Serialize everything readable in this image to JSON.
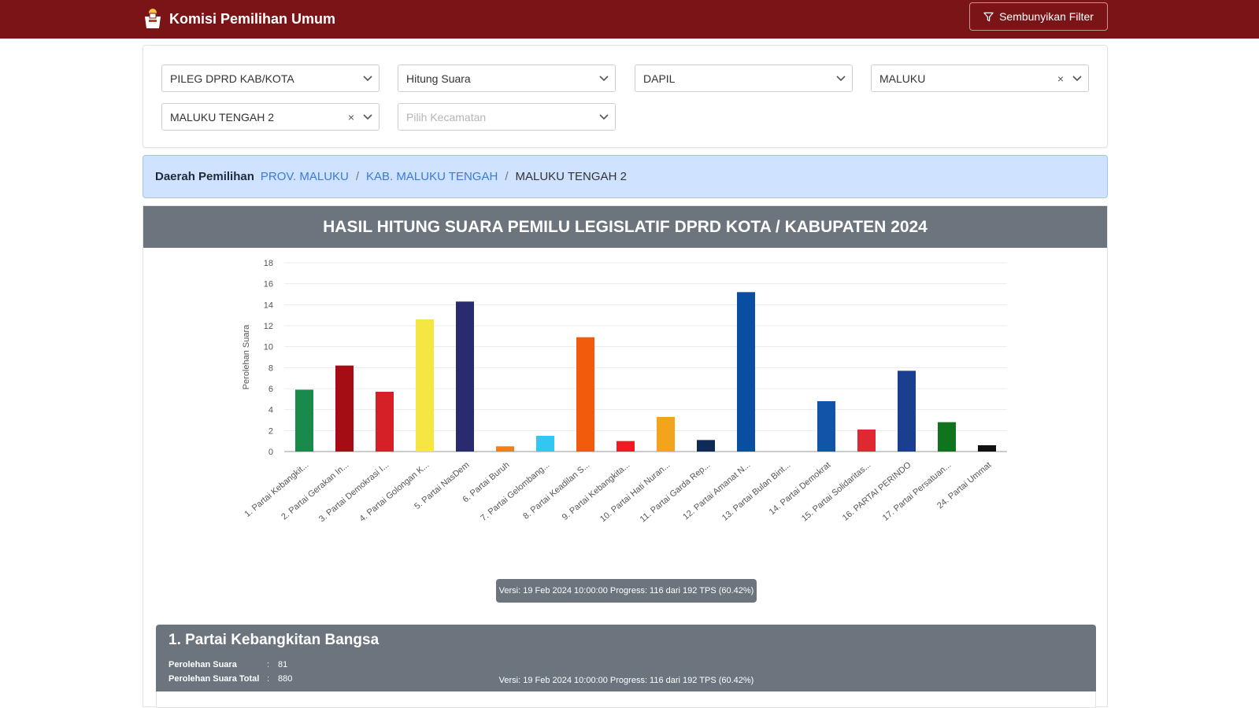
{
  "navbar": {
    "title": "Komisi Pemilihan Umum",
    "filter_button": "Sembunyikan Filter"
  },
  "filters": [
    {
      "value": "PILEG DPRD KAB/KOTA",
      "clearable": false
    },
    {
      "value": "Hitung Suara",
      "clearable": false
    },
    {
      "value": "DAPIL",
      "clearable": false
    },
    {
      "value": "MALUKU",
      "clearable": true
    },
    {
      "value": "MALUKU TENGAH 2",
      "clearable": true
    },
    {
      "value": "",
      "placeholder": "Pilih Kecamatan",
      "clearable": false
    }
  ],
  "breadcrumb": {
    "title": "Daerah Pemilihan",
    "items": [
      "PROV. MALUKU",
      "KAB. MALUKU TENGAH",
      "MALUKU TENGAH 2"
    ]
  },
  "chart_header": "HASIL HITUNG SUARA PEMILU LEGISLATIF DPRD KOTA / KABUPATEN 2024",
  "version_text": "Versi: 19 Feb 2024 10:00:00 Progress: 116 dari 192 TPS (60.42%)",
  "chart_data": {
    "type": "bar",
    "title": "",
    "xlabel": "",
    "ylabel": "Perolehan Suara",
    "ylim": [
      0,
      18
    ],
    "yticks": [
      0,
      2,
      4,
      6,
      8,
      10,
      12,
      14,
      16,
      18
    ],
    "grid": true,
    "categories": [
      "1. Partai Kebangkit...",
      "2. Partai Gerakan In...",
      "3. Partai Demokrasi I...",
      "4. Partai Golongan K...",
      "5. Partai NasDem",
      "6. Partai Buruh",
      "7. Partai Gelombang...",
      "8. Partai Keadilan S...",
      "9. Partai Kebangkita...",
      "10. Partai Hati Nuran...",
      "11. Partai Garda Rep...",
      "12. Partai Amanat N...",
      "13. Partai Bulan Bint...",
      "14. Partai Demokrat",
      "15. Partai Solidaritas...",
      "16. PARTAI PERINDO",
      "17. Partai Persatuan...",
      "24. Partai Ummat"
    ],
    "values": [
      5.9,
      8.2,
      5.7,
      12.6,
      14.3,
      0.5,
      1.5,
      10.9,
      1.0,
      3.3,
      1.1,
      15.2,
      0,
      4.8,
      2.1,
      7.7,
      2.8,
      0.6
    ],
    "colors": [
      "#1a8a4a",
      "#a50c14",
      "#d62027",
      "#f5e642",
      "#2a2a6e",
      "#f07f18",
      "#33c6f0",
      "#f25a0c",
      "#ee1c24",
      "#f2a51c",
      "#0e2b57",
      "#0a4ea2",
      "#2e7d32",
      "#1055a8",
      "#e02830",
      "#1b3f8f",
      "#10731e",
      "#111111"
    ]
  },
  "party": {
    "name": "1. Partai Kebangkitan Bangsa",
    "stats": [
      {
        "label": "Perolehan Suara",
        "value": "81"
      },
      {
        "label": "Perolehan Suara Total",
        "value": "880"
      }
    ]
  }
}
